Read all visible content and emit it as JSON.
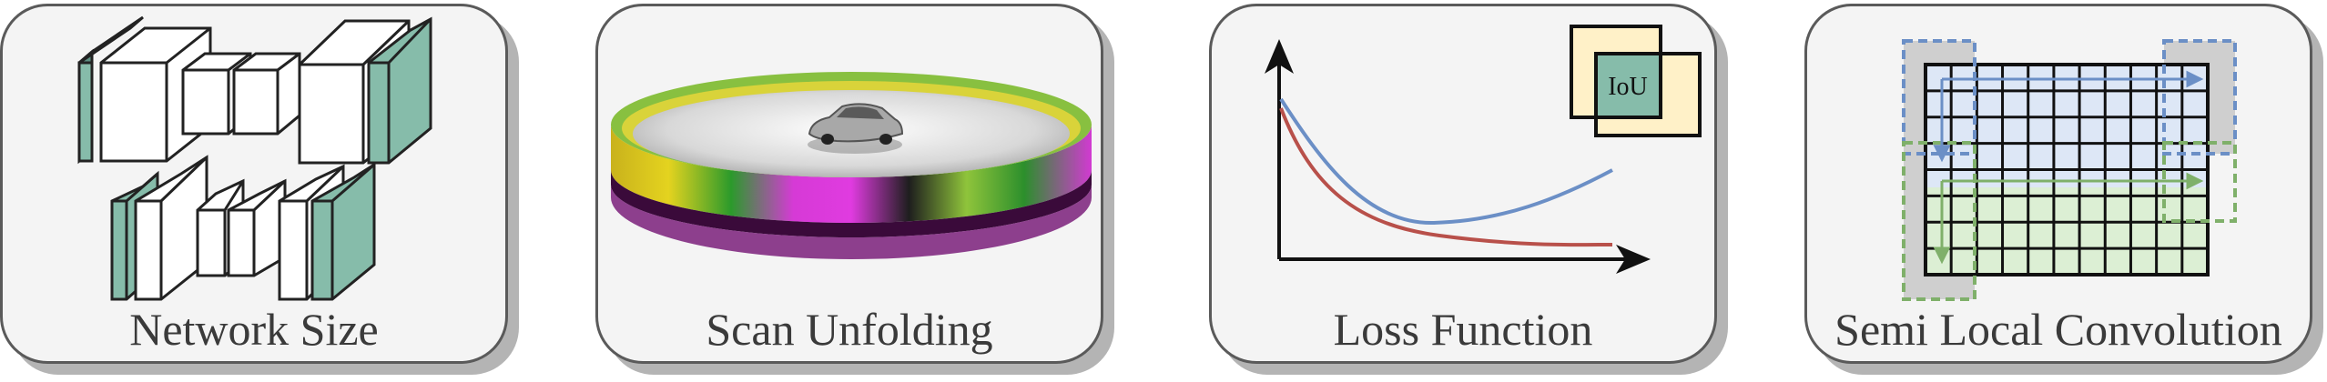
{
  "panels": [
    {
      "id": "network-size",
      "caption": "Network Size"
    },
    {
      "id": "scan-unfolding",
      "caption": "Scan Unfolding"
    },
    {
      "id": "loss-function",
      "caption": "Loss Function",
      "iou_label": "IoU"
    },
    {
      "id": "semi-local-convolution",
      "caption": "Semi Local Convolution"
    }
  ],
  "colors": {
    "panel_bg": "#f4f4f4",
    "teal": "#86bcaa",
    "loss_blue": "#6b8fc6",
    "loss_red": "#b8504a",
    "iou_fill": "#fff1c8",
    "grid_blue": "#dde7f6",
    "grid_green": "#dcefd4"
  }
}
